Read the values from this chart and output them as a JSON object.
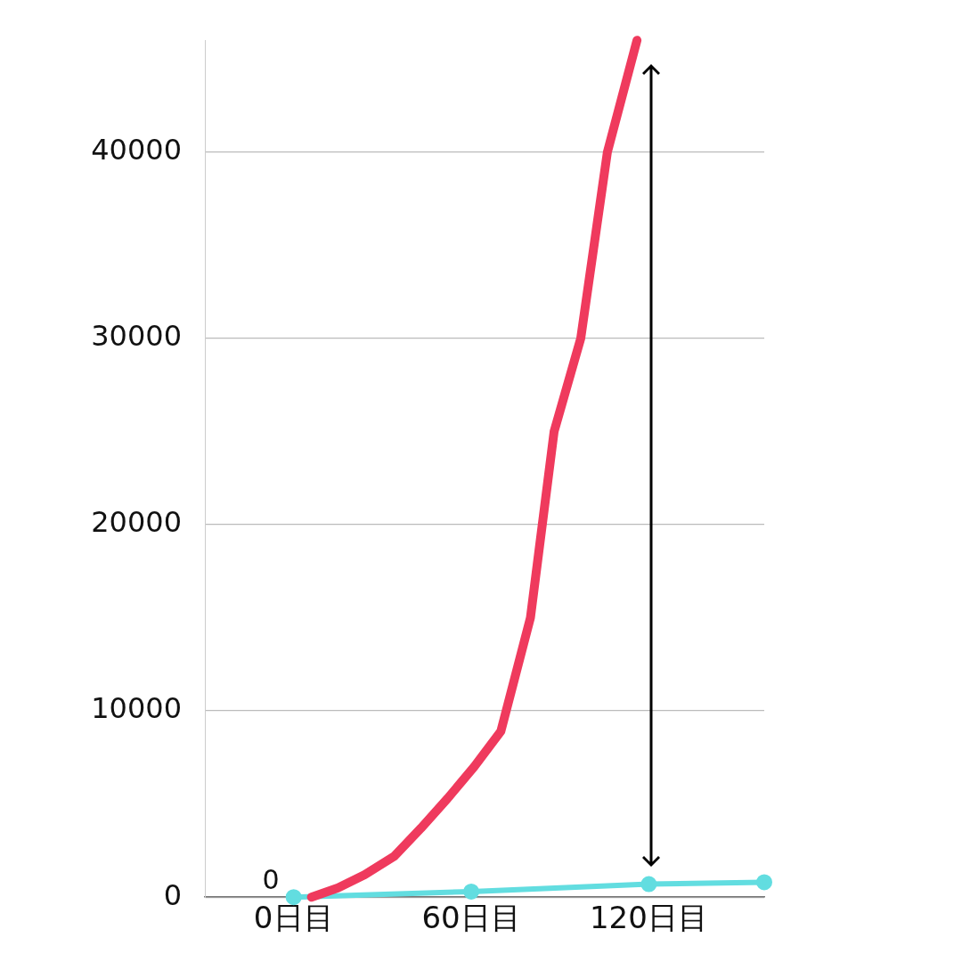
{
  "chart_data": {
    "type": "line",
    "series": [
      {
        "color": "#ef3a5d",
        "marker": "none",
        "x": [
          6,
          15,
          24,
          34,
          43,
          52,
          61,
          70,
          80,
          88,
          97,
          106,
          116
        ],
        "values": [
          0,
          500,
          1200,
          2200,
          3700,
          5300,
          7000,
          8900,
          15000,
          25000,
          30000,
          40000,
          46000
        ]
      },
      {
        "color": "#62dde0",
        "marker": "circle",
        "x": [
          0,
          60,
          120,
          159
        ],
        "values": [
          0,
          300,
          700,
          800
        ]
      }
    ],
    "xlim": [
      -30,
      159
    ],
    "xticks": [
      {
        "value": 0,
        "label": "0日目"
      },
      {
        "value": 60,
        "label": "60日目"
      },
      {
        "value": 120,
        "label": "120日目"
      }
    ],
    "ylim": [
      0,
      46000
    ],
    "yticks": [
      0,
      10000,
      20000,
      30000,
      40000
    ],
    "grid": "y",
    "legend": false,
    "line_style": "solid",
    "annotations": [
      {
        "text": "0",
        "x": 0,
        "y": 0
      }
    ]
  }
}
